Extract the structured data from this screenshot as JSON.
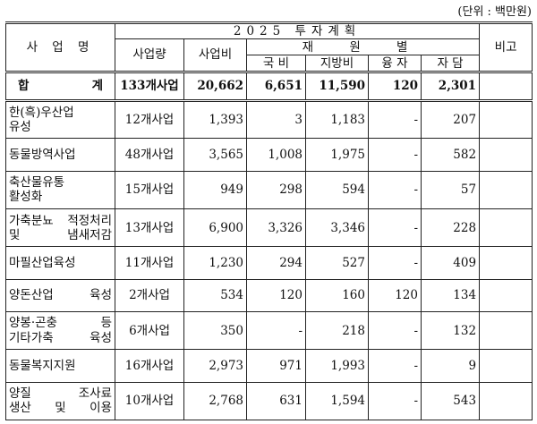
{
  "unit_note": "(단위 : 백만원)",
  "header": {
    "business_name": "사 업 명",
    "plan_title": "2025 투자계획",
    "quantity": "사업량",
    "cost": "사업비",
    "funding": "재 원 별",
    "national": "국 비",
    "local": "지방비",
    "loan": "융 자",
    "self": "자 담",
    "remarks": "비고"
  },
  "total": {
    "label_a": "합",
    "label_b": "계",
    "quantity": "133개사업",
    "cost": "20,662",
    "national": "6,651",
    "local": "11,590",
    "loan": "120",
    "self": "2,301"
  },
  "rows": [
    {
      "name_lines": [
        "한(흑)우산업",
        "유성"
      ],
      "quantity": "12개사업",
      "cost": "1,393",
      "national": "3",
      "local": "1,183",
      "loan": "-",
      "self": "207"
    },
    {
      "name_lines": [
        "동물방역사업"
      ],
      "quantity": "48개사업",
      "cost": "3,565",
      "national": "1,008",
      "local": "1,975",
      "loan": "-",
      "self": "582"
    },
    {
      "name_lines": [
        "축산물유통",
        "활성화"
      ],
      "quantity": "15개사업",
      "cost": "949",
      "national": "298",
      "local": "594",
      "loan": "-",
      "self": "57"
    },
    {
      "name_lines": [
        "가축분뇨 적정처리",
        "및 냄새저감"
      ],
      "quantity": "13개사업",
      "cost": "6,900",
      "national": "3,326",
      "local": "3,346",
      "loan": "-",
      "self": "228"
    },
    {
      "name_lines": [
        "마필산업육성"
      ],
      "quantity": "11개사업",
      "cost": "1,230",
      "national": "294",
      "local": "527",
      "loan": "-",
      "self": "409"
    },
    {
      "name_lines": [
        "양돈산업 육성"
      ],
      "quantity": "2개사업",
      "cost": "534",
      "national": "120",
      "local": "160",
      "loan": "120",
      "self": "134"
    },
    {
      "name_lines": [
        "양봉·곤충 등",
        "기타가축 육성"
      ],
      "quantity": "6개사업",
      "cost": "350",
      "national": "-",
      "local": "218",
      "loan": "-",
      "self": "132"
    },
    {
      "name_lines": [
        "동물복지지원"
      ],
      "quantity": "16개사업",
      "cost": "2,973",
      "national": "971",
      "local": "1,993",
      "loan": "-",
      "self": "9"
    },
    {
      "name_lines": [
        "양질 조사료",
        "생산 및 이용"
      ],
      "quantity": "10개사업",
      "cost": "2,768",
      "national": "631",
      "local": "1,594",
      "loan": "-",
      "self": "543"
    }
  ]
}
